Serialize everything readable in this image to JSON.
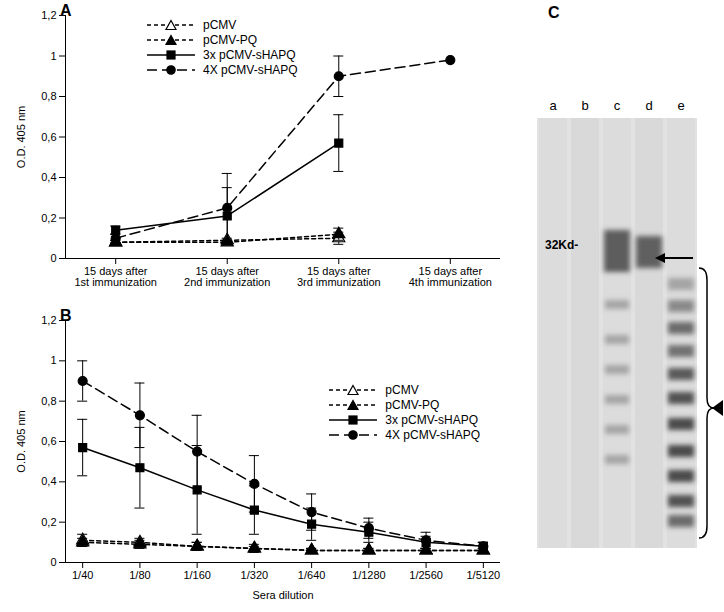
{
  "chart_data": [
    {
      "type": "line",
      "title": "A",
      "ylabel": "O.D. 405 nm",
      "categories": [
        "15 days after 1st immunization",
        "15 days after 2nd immunization",
        "15 days after 3rd immunization",
        "15 days after 4th immunization"
      ],
      "series": [
        {
          "name": "pCMV",
          "color": "#000000",
          "marker": "triangle_open",
          "line_style": "dashed",
          "values": [
            0.08,
            0.09,
            0.1,
            null
          ],
          "errors": [
            0.01,
            0.01,
            0.03,
            null
          ]
        },
        {
          "name": "pCMV-PQ",
          "color": "#000000",
          "marker": "triangle",
          "line_style": "dashed",
          "values": [
            0.08,
            0.08,
            0.12,
            null
          ],
          "errors": [
            0.01,
            0.01,
            0.03,
            null
          ]
        },
        {
          "name": "3x pCMV-sHAPQ",
          "color": "#000000",
          "marker": "square",
          "line_style": "solid",
          "values": [
            0.14,
            0.21,
            0.57,
            null
          ],
          "errors": [
            0.02,
            0.14,
            0.14,
            null
          ]
        },
        {
          "name": "4X pCMV-sHAPQ",
          "color": "#000000",
          "marker": "circle",
          "line_style": "longdashed",
          "values": [
            0.1,
            0.25,
            0.9,
            0.98
          ],
          "errors": [
            0.02,
            0.17,
            0.1,
            null
          ]
        }
      ],
      "ylim": [
        0,
        1.2
      ],
      "yticks": [
        0,
        {
          "value": 0.2,
          "label": "0,2"
        },
        {
          "value": 0.4,
          "label": "0,4"
        },
        {
          "value": 0.6,
          "label": "0,6"
        },
        {
          "value": 0.8,
          "label": "0,8"
        },
        1,
        {
          "value": 1.2,
          "label": "1,2"
        }
      ],
      "legend": "top-left",
      "grid": false
    },
    {
      "type": "line",
      "title": "B",
      "xlabel": "Sera dilution",
      "ylabel": "O.D. 405 nm",
      "categories": [
        "1/40",
        "1/80",
        "1/160",
        "1/320",
        "1/640",
        "1/1280",
        "1/2560",
        "1/5120"
      ],
      "series": [
        {
          "name": "pCMV",
          "color": "#000000",
          "marker": "triangle_open",
          "line_style": "dashed",
          "values": [
            0.11,
            0.1,
            0.08,
            0.07,
            0.06,
            0.06,
            0.06,
            0.06
          ],
          "errors": [
            0.03,
            0.02,
            0.02,
            0.02,
            0.01,
            0.01,
            0.01,
            0.01
          ]
        },
        {
          "name": "pCMV-PQ",
          "color": "#000000",
          "marker": "triangle",
          "line_style": "dashed",
          "values": [
            0.1,
            0.09,
            0.08,
            0.07,
            0.06,
            0.06,
            0.06,
            0.06
          ],
          "errors": [
            0.02,
            0.02,
            0.02,
            0.01,
            0.01,
            0.01,
            0.01,
            0.01
          ]
        },
        {
          "name": "3x pCMV-sHAPQ",
          "color": "#000000",
          "marker": "square",
          "line_style": "solid",
          "values": [
            0.57,
            0.47,
            0.36,
            0.26,
            0.19,
            0.15,
            0.1,
            0.08
          ],
          "errors": [
            0.14,
            0.2,
            0.22,
            0.12,
            0.08,
            0.05,
            0.03,
            0.02
          ]
        },
        {
          "name": "4X pCMV-sHAPQ",
          "color": "#000000",
          "marker": "circle",
          "line_style": "longdashed",
          "values": [
            0.9,
            0.73,
            0.55,
            0.39,
            0.25,
            0.17,
            0.11,
            0.08
          ],
          "errors": [
            0.1,
            0.16,
            0.18,
            0.14,
            0.09,
            0.05,
            0.04,
            0.02
          ]
        }
      ],
      "ylim": [
        0,
        1.2
      ],
      "yticks": [
        0,
        {
          "value": 0.2,
          "label": "0,2"
        },
        {
          "value": 0.4,
          "label": "0,4"
        },
        {
          "value": 0.6,
          "label": "0,6"
        },
        {
          "value": 0.8,
          "label": "0,8"
        },
        1,
        {
          "value": 1.2,
          "label": "1,2"
        }
      ],
      "legend": "top-right",
      "grid": false
    }
  ],
  "blot": {
    "title": "C",
    "lanes": [
      "a",
      "b",
      "c",
      "d",
      "e"
    ],
    "marker_label": "32Kd-"
  }
}
